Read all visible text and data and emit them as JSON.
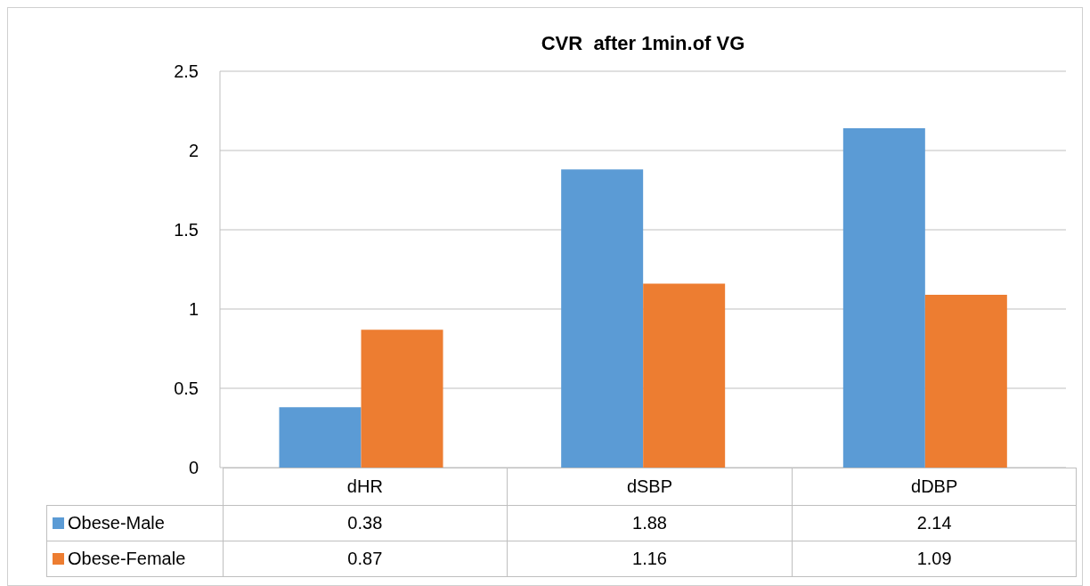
{
  "chart_data": {
    "type": "bar",
    "title": "CVR  after 1min.of VG",
    "categories": [
      "dHR",
      "dSBP",
      "dDBP"
    ],
    "series": [
      {
        "name": "Obese-Male",
        "color": "#5b9bd5",
        "values": [
          0.38,
          1.88,
          2.14
        ]
      },
      {
        "name": "Obese-Female",
        "color": "#ed7d31",
        "values": [
          0.87,
          1.16,
          1.09
        ]
      }
    ],
    "ylim": [
      0,
      2.5
    ],
    "yticks": [
      0,
      0.5,
      1,
      1.5,
      2,
      2.5
    ],
    "grid": "y",
    "legend": "bottom",
    "data_labels": true
  }
}
